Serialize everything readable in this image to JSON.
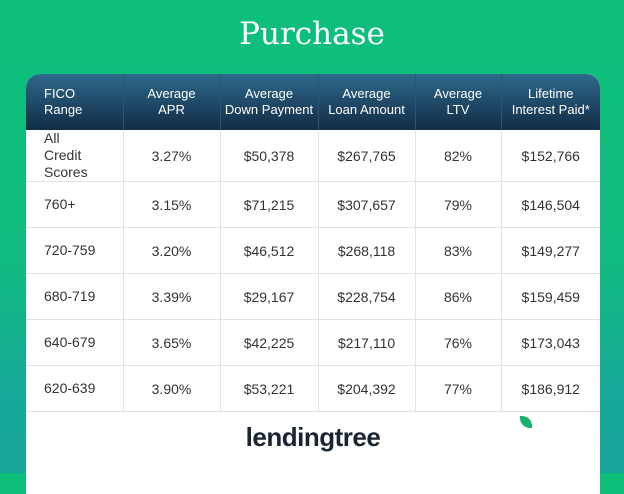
{
  "title": "Purchase",
  "columns": [
    [
      "FICO",
      "Range"
    ],
    [
      "Average",
      "APR"
    ],
    [
      "Average",
      "Down Payment"
    ],
    [
      "Average",
      "Loan Amount"
    ],
    [
      "Average",
      "LTV"
    ],
    [
      "Lifetime",
      "Interest Paid*"
    ]
  ],
  "rows": [
    [
      "All Credit Scores",
      "3.27%",
      "$50,378",
      "$267,765",
      "82%",
      "$152,766"
    ],
    [
      "760+",
      "3.15%",
      "$71,215",
      "$307,657",
      "79%",
      "$146,504"
    ],
    [
      "720-759",
      "3.20%",
      "$46,512",
      "$268,118",
      "83%",
      "$149,277"
    ],
    [
      "680-719",
      "3.39%",
      "$29,167",
      "$228,754",
      "86%",
      "$159,459"
    ],
    [
      "640-679",
      "3.65%",
      "$42,225",
      "$217,110",
      "76%",
      "$173,043"
    ],
    [
      "620-639",
      "3.90%",
      "$53,221",
      "$204,392",
      "77%",
      "$186,912"
    ]
  ],
  "logo": {
    "text": "lendingtree",
    "icon": "leaf-icon",
    "color": "#19b06b"
  }
}
